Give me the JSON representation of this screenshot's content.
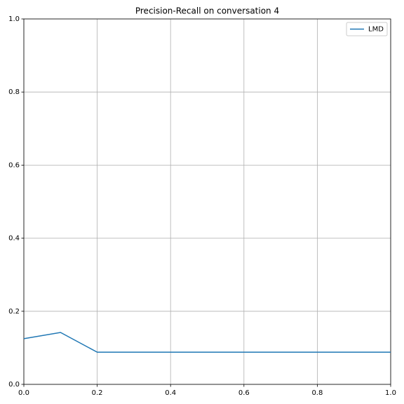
{
  "chart_data": {
    "type": "line",
    "title": "Precision-Recall on conversation 4",
    "x": [
      0,
      0.1,
      0.2,
      0.3,
      0.4,
      0.5,
      0.6,
      0.7,
      0.8,
      0.9,
      1
    ],
    "series": [
      {
        "name": "LMD",
        "color": "#1f77b4",
        "values": [
          0.125,
          0.142,
          0.088,
          0.088,
          0.088,
          0.088,
          0.088,
          0.088,
          0.088,
          0.088,
          0.088
        ]
      }
    ],
    "xlim": [
      0,
      1
    ],
    "ylim": [
      0,
      1
    ],
    "xticks": [
      {
        "value": 0,
        "label": "0.0"
      },
      0.2,
      0.4,
      0.6,
      0.8,
      {
        "value": 1,
        "label": "1.0"
      }
    ],
    "yticks": [
      {
        "value": 0,
        "label": "0.0"
      },
      0.2,
      0.4,
      0.6,
      0.8,
      {
        "value": 1,
        "label": "1.0"
      }
    ],
    "grid": true,
    "legend": "upper-right"
  }
}
